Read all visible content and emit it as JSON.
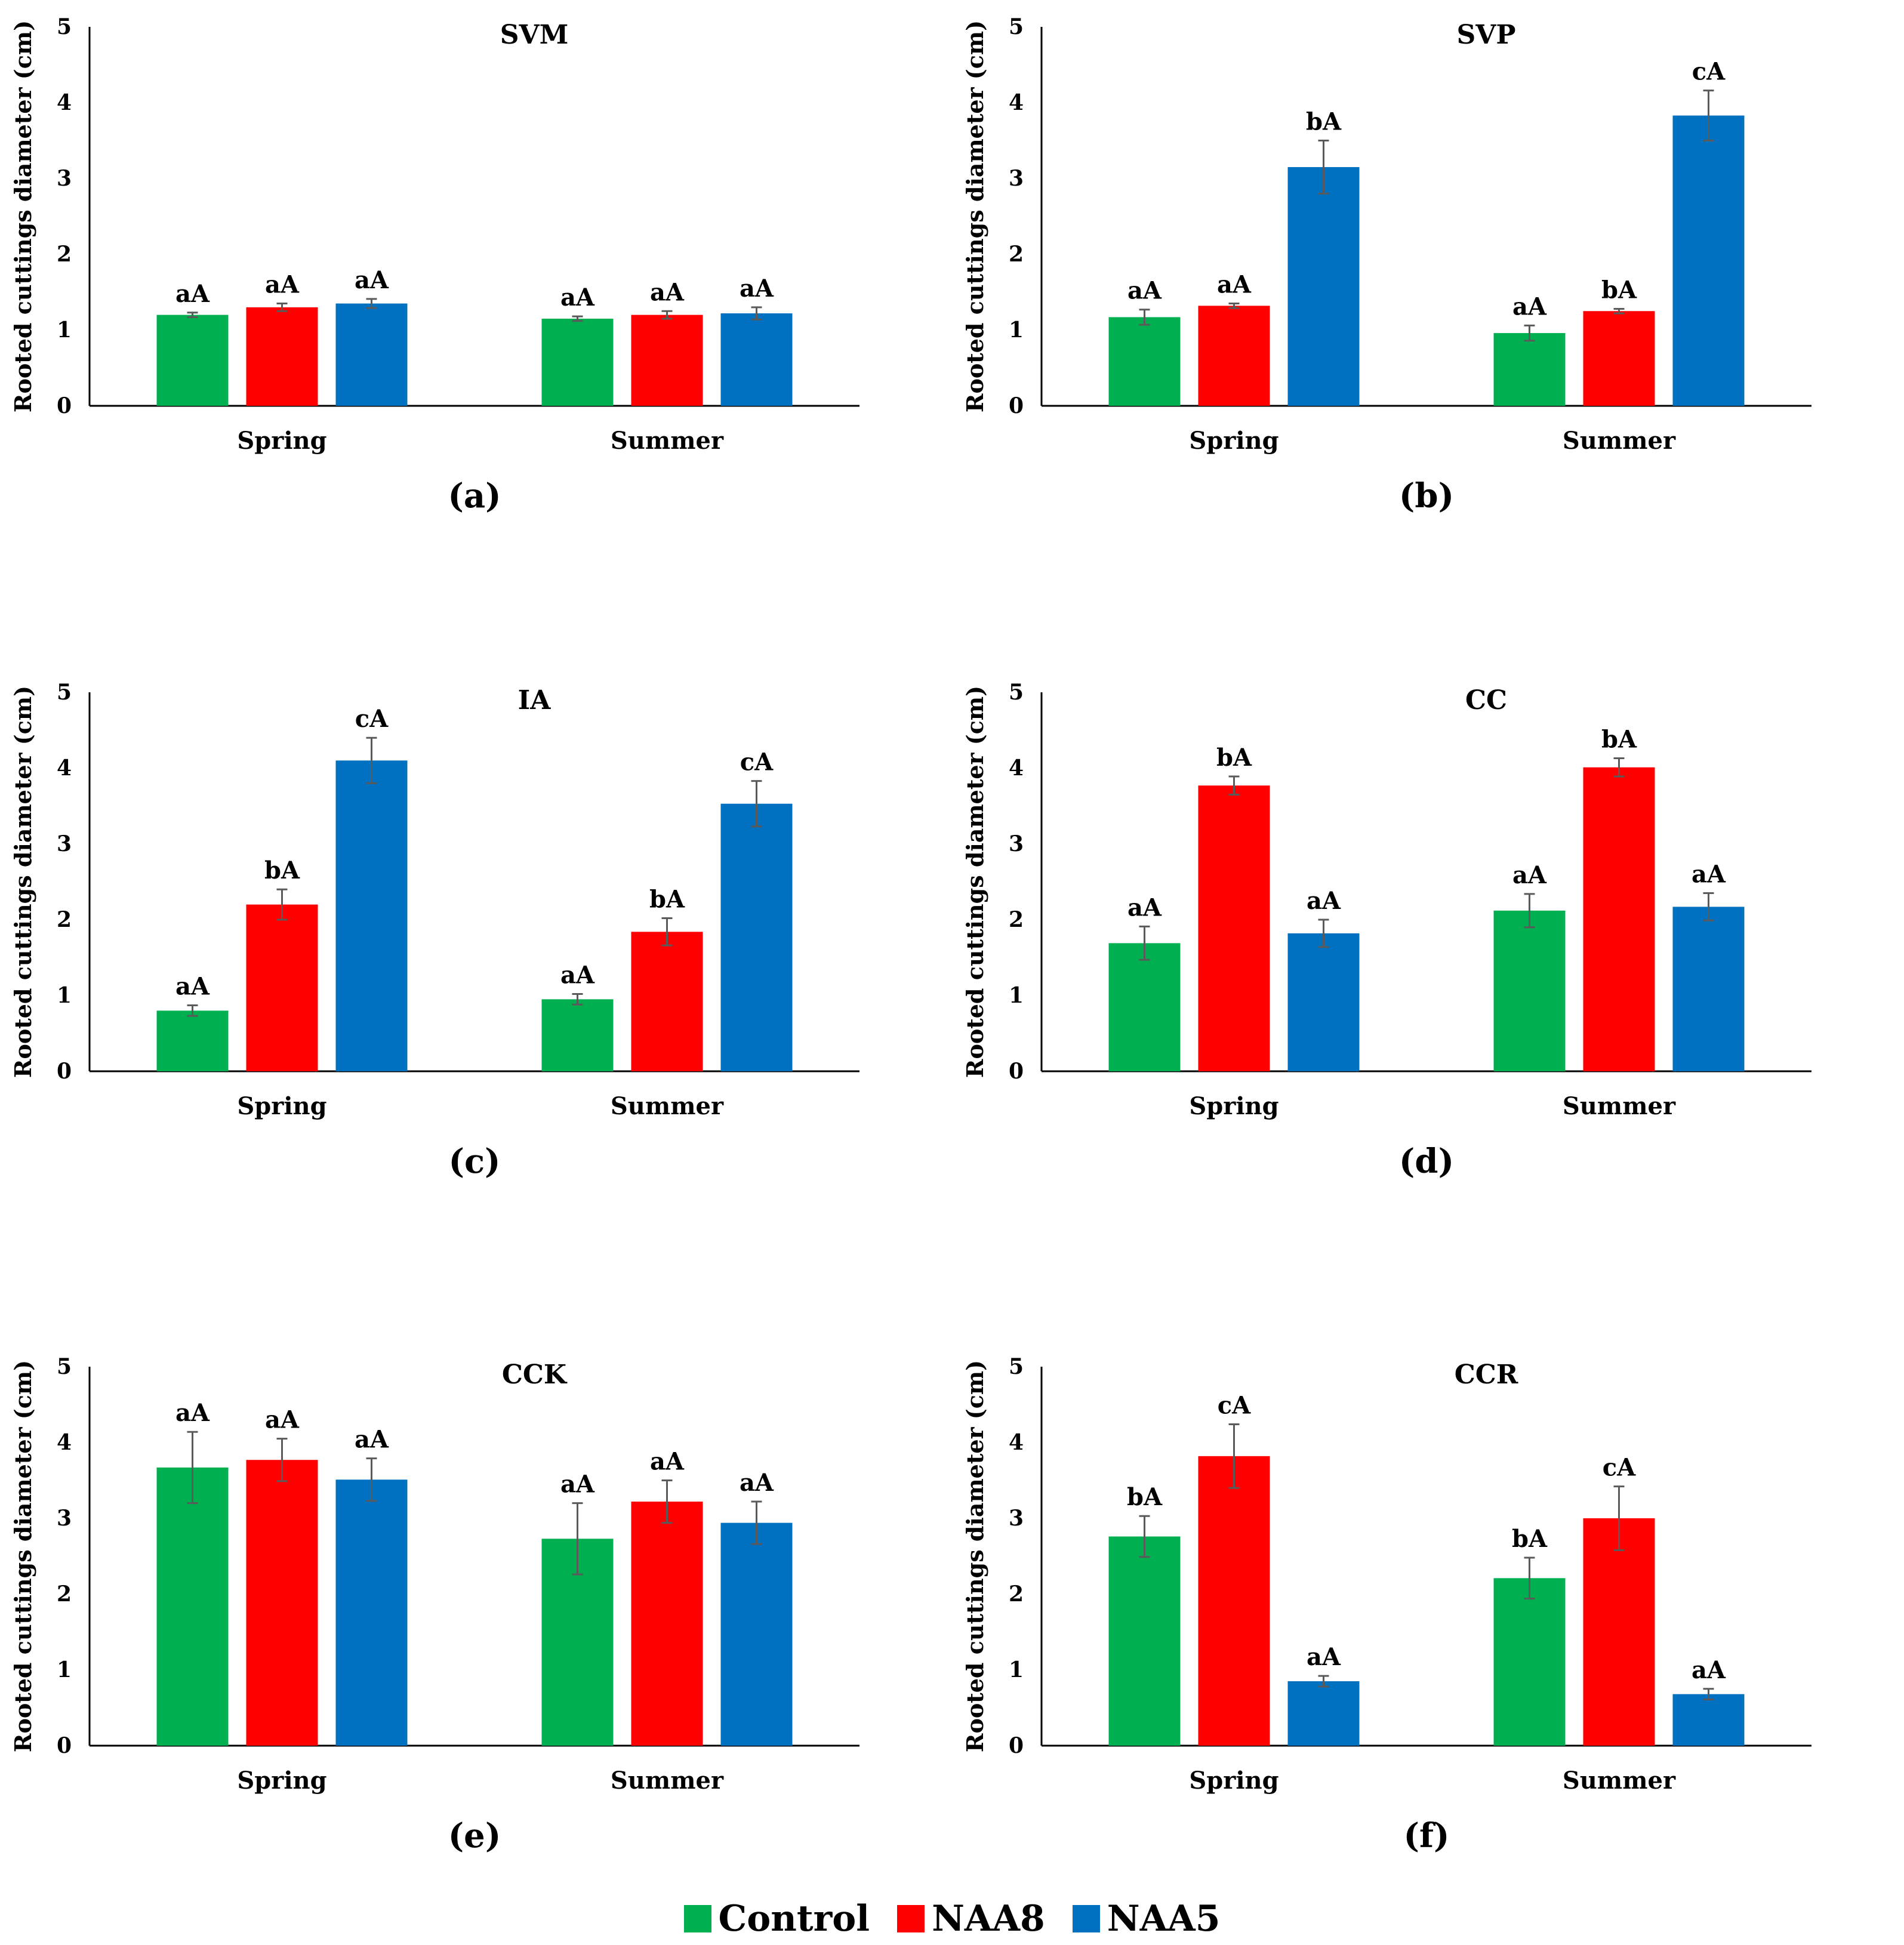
{
  "chart_data": [
    {
      "type": "bar",
      "title": "SVM",
      "panel_label": "(a)",
      "ylabel": "Rooted cuttings diameter (cm)",
      "ylim": [
        0,
        5
      ],
      "yticks": [
        "0",
        "1",
        "2",
        "3",
        "4",
        "5"
      ],
      "categories": [
        "Spring",
        "Summer"
      ],
      "series": [
        {
          "name": "Control",
          "values": [
            1.2,
            1.15
          ],
          "errors": [
            0.03,
            0.03
          ],
          "letters": [
            "aA",
            "aA"
          ]
        },
        {
          "name": "NAA8",
          "values": [
            1.3,
            1.2
          ],
          "errors": [
            0.05,
            0.05
          ],
          "letters": [
            "aA",
            "aA"
          ]
        },
        {
          "name": "NAA5",
          "values": [
            1.35,
            1.22
          ],
          "errors": [
            0.06,
            0.08
          ],
          "letters": [
            "aA",
            "aA"
          ]
        }
      ]
    },
    {
      "type": "bar",
      "title": "SVP",
      "panel_label": "(b)",
      "ylabel": "Rooted cuttings diameter (cm)",
      "ylim": [
        0,
        5
      ],
      "yticks": [
        "0",
        "1",
        "2",
        "3",
        "4",
        "5"
      ],
      "categories": [
        "Spring",
        "Summer"
      ],
      "series": [
        {
          "name": "Control",
          "values": [
            1.17,
            0.96
          ],
          "errors": [
            0.1,
            0.1
          ],
          "letters": [
            "aA",
            "aA"
          ]
        },
        {
          "name": "NAA8",
          "values": [
            1.32,
            1.25
          ],
          "errors": [
            0.03,
            0.03
          ],
          "letters": [
            "aA",
            "bA"
          ]
        },
        {
          "name": "NAA5",
          "values": [
            3.15,
            3.83
          ],
          "errors": [
            0.35,
            0.33
          ],
          "letters": [
            "bA",
            "cA"
          ]
        }
      ]
    },
    {
      "type": "bar",
      "title": "IA",
      "panel_label": "(c)",
      "ylabel": "Rooted cuttings diameter (cm)",
      "ylim": [
        0,
        5
      ],
      "yticks": [
        "0",
        "1",
        "2",
        "3",
        "4",
        "5"
      ],
      "categories": [
        "Spring",
        "Summer"
      ],
      "series": [
        {
          "name": "Control",
          "values": [
            0.8,
            0.95
          ],
          "errors": [
            0.07,
            0.07
          ],
          "letters": [
            "aA",
            "aA"
          ]
        },
        {
          "name": "NAA8",
          "values": [
            2.2,
            1.84
          ],
          "errors": [
            0.2,
            0.18
          ],
          "letters": [
            "bA",
            "bA"
          ]
        },
        {
          "name": "NAA5",
          "values": [
            4.1,
            3.53
          ],
          "errors": [
            0.3,
            0.3
          ],
          "letters": [
            "cA",
            "cA"
          ]
        }
      ]
    },
    {
      "type": "bar",
      "title": "CC",
      "panel_label": "(d)",
      "ylabel": "Rooted cuttings diameter (cm)",
      "ylim": [
        0,
        5
      ],
      "yticks": [
        "0",
        "1",
        "2",
        "3",
        "4",
        "5"
      ],
      "categories": [
        "Spring",
        "Summer"
      ],
      "series": [
        {
          "name": "Control",
          "values": [
            1.69,
            2.12
          ],
          "errors": [
            0.22,
            0.22
          ],
          "letters": [
            "aA",
            "aA"
          ]
        },
        {
          "name": "NAA8",
          "values": [
            3.77,
            4.01
          ],
          "errors": [
            0.12,
            0.12
          ],
          "letters": [
            "bA",
            "bA"
          ]
        },
        {
          "name": "NAA5",
          "values": [
            1.82,
            2.17
          ],
          "errors": [
            0.18,
            0.18
          ],
          "letters": [
            "aA",
            "aA"
          ]
        }
      ]
    },
    {
      "type": "bar",
      "title": "CCK",
      "panel_label": "(e)",
      "ylabel": "Rooted cuttings diameter (cm)",
      "ylim": [
        0,
        5
      ],
      "yticks": [
        "0",
        "1",
        "2",
        "3",
        "4",
        "5"
      ],
      "categories": [
        "Spring",
        "Summer"
      ],
      "series": [
        {
          "name": "Control",
          "values": [
            3.67,
            2.73
          ],
          "errors": [
            0.47,
            0.47
          ],
          "letters": [
            "aA",
            "aA"
          ]
        },
        {
          "name": "NAA8",
          "values": [
            3.77,
            3.22
          ],
          "errors": [
            0.28,
            0.28
          ],
          "letters": [
            "aA",
            "aA"
          ]
        },
        {
          "name": "NAA5",
          "values": [
            3.51,
            2.94
          ],
          "errors": [
            0.28,
            0.28
          ],
          "letters": [
            "aA",
            "aA"
          ]
        }
      ]
    },
    {
      "type": "bar",
      "title": "CCR",
      "panel_label": "(f)",
      "ylabel": "Rooted cuttings diameter (cm)",
      "ylim": [
        0,
        5
      ],
      "yticks": [
        "0",
        "1",
        "2",
        "3",
        "4",
        "5"
      ],
      "categories": [
        "Spring",
        "Summer"
      ],
      "series": [
        {
          "name": "Control",
          "values": [
            2.76,
            2.21
          ],
          "errors": [
            0.27,
            0.27
          ],
          "letters": [
            "bA",
            "bA"
          ]
        },
        {
          "name": "NAA8",
          "values": [
            3.82,
            3.0
          ],
          "errors": [
            0.42,
            0.42
          ],
          "letters": [
            "cA",
            "cA"
          ]
        },
        {
          "name": "NAA5",
          "values": [
            0.85,
            0.68
          ],
          "errors": [
            0.07,
            0.07
          ],
          "letters": [
            "aA",
            "aA"
          ]
        }
      ]
    }
  ],
  "legend": [
    {
      "name": "Control",
      "color": "#00B050"
    },
    {
      "name": "NAA8",
      "color": "#FF0000"
    },
    {
      "name": "NAA5",
      "color": "#0070C0"
    }
  ]
}
